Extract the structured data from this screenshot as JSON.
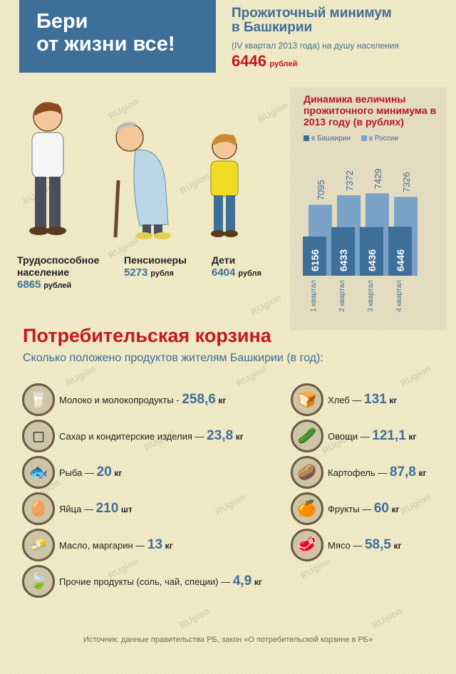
{
  "banner": {
    "line1": "Бери",
    "line2": "от жизни все!"
  },
  "header": {
    "title_line1": "Прожиточный минимум",
    "title_line2": "в Башкирии",
    "subtitle": "(IV квартал 2013 года) на душу населения",
    "value": "6446",
    "unit": "рублей"
  },
  "figures": [
    {
      "label1": "Трудоспособное",
      "label2": "население",
      "value": "6865",
      "unit": "рублей"
    },
    {
      "label1": "Пенсионеры",
      "value": "5273",
      "unit": "рубля"
    },
    {
      "label1": "Дети",
      "value": "6404",
      "unit": "рубля"
    }
  ],
  "colors": {
    "bashkiria": "#3d6f99",
    "russia": "#7aa2c6",
    "accent_red": "#c8161d",
    "blue_text": "#3f6e97"
  },
  "chart_data": {
    "type": "bar",
    "title": "Динамика величины прожиточного минимума в 2013 году (в рублях)",
    "categories": [
      "1 квартал",
      "2 квартал",
      "3 квартал",
      "4 квартал"
    ],
    "series": [
      {
        "name": "в Башкирии",
        "values": [
          6156,
          6433,
          6436,
          6446
        ]
      },
      {
        "name": "в России",
        "values": [
          7095,
          7372,
          7429,
          7326
        ]
      }
    ],
    "value_labels": {
      "bashkiria": [
        "6156",
        "6433",
        "6436",
        "6446"
      ],
      "russia": [
        "7095",
        "7372",
        "7429",
        "7326"
      ]
    },
    "legend_position": "top"
  },
  "basket": {
    "title": "Потребительская корзина",
    "subtitle": "Сколько положено продуктов жителям Башкирии (в год):",
    "left": [
      {
        "icon": "milk-icon",
        "label": "Молоко и молокопродукты - ",
        "value": "258,6",
        "unit": "кг"
      },
      {
        "icon": "sugar-icon",
        "label": "Сахар и кондитерские изделия — ",
        "value": "23,8",
        "unit": "кг"
      },
      {
        "icon": "fish-icon",
        "label": "Рыба — ",
        "value": "20",
        "unit": "кг"
      },
      {
        "icon": "eggs-icon",
        "label": "Яйца — ",
        "value": "210",
        "unit": "шт"
      },
      {
        "icon": "butter-icon",
        "label": "Масло, маргарин — ",
        "value": "13",
        "unit": "кг"
      },
      {
        "icon": "tea-icon",
        "label": "Прочие продукты (соль, чай, специи) — ",
        "value": "4,9",
        "unit": "кг"
      }
    ],
    "right": [
      {
        "icon": "bread-icon",
        "label": "Хлеб — ",
        "value": "131",
        "unit": "кг"
      },
      {
        "icon": "vegetables-icon",
        "label": "Овощи — ",
        "value": "121,1",
        "unit": "кг"
      },
      {
        "icon": "potato-icon",
        "label": "Картофель — ",
        "value": "87,8",
        "unit": "кг"
      },
      {
        "icon": "fruits-icon",
        "label": "Фрукты — ",
        "value": "60",
        "unit": "кг"
      },
      {
        "icon": "meat-icon",
        "label": "Мясо — ",
        "value": "58,5",
        "unit": "кг"
      }
    ]
  },
  "source": "Источник: данные правительства РБ, закон «О потребительской корзине в РБ»",
  "watermark": "RUgion"
}
